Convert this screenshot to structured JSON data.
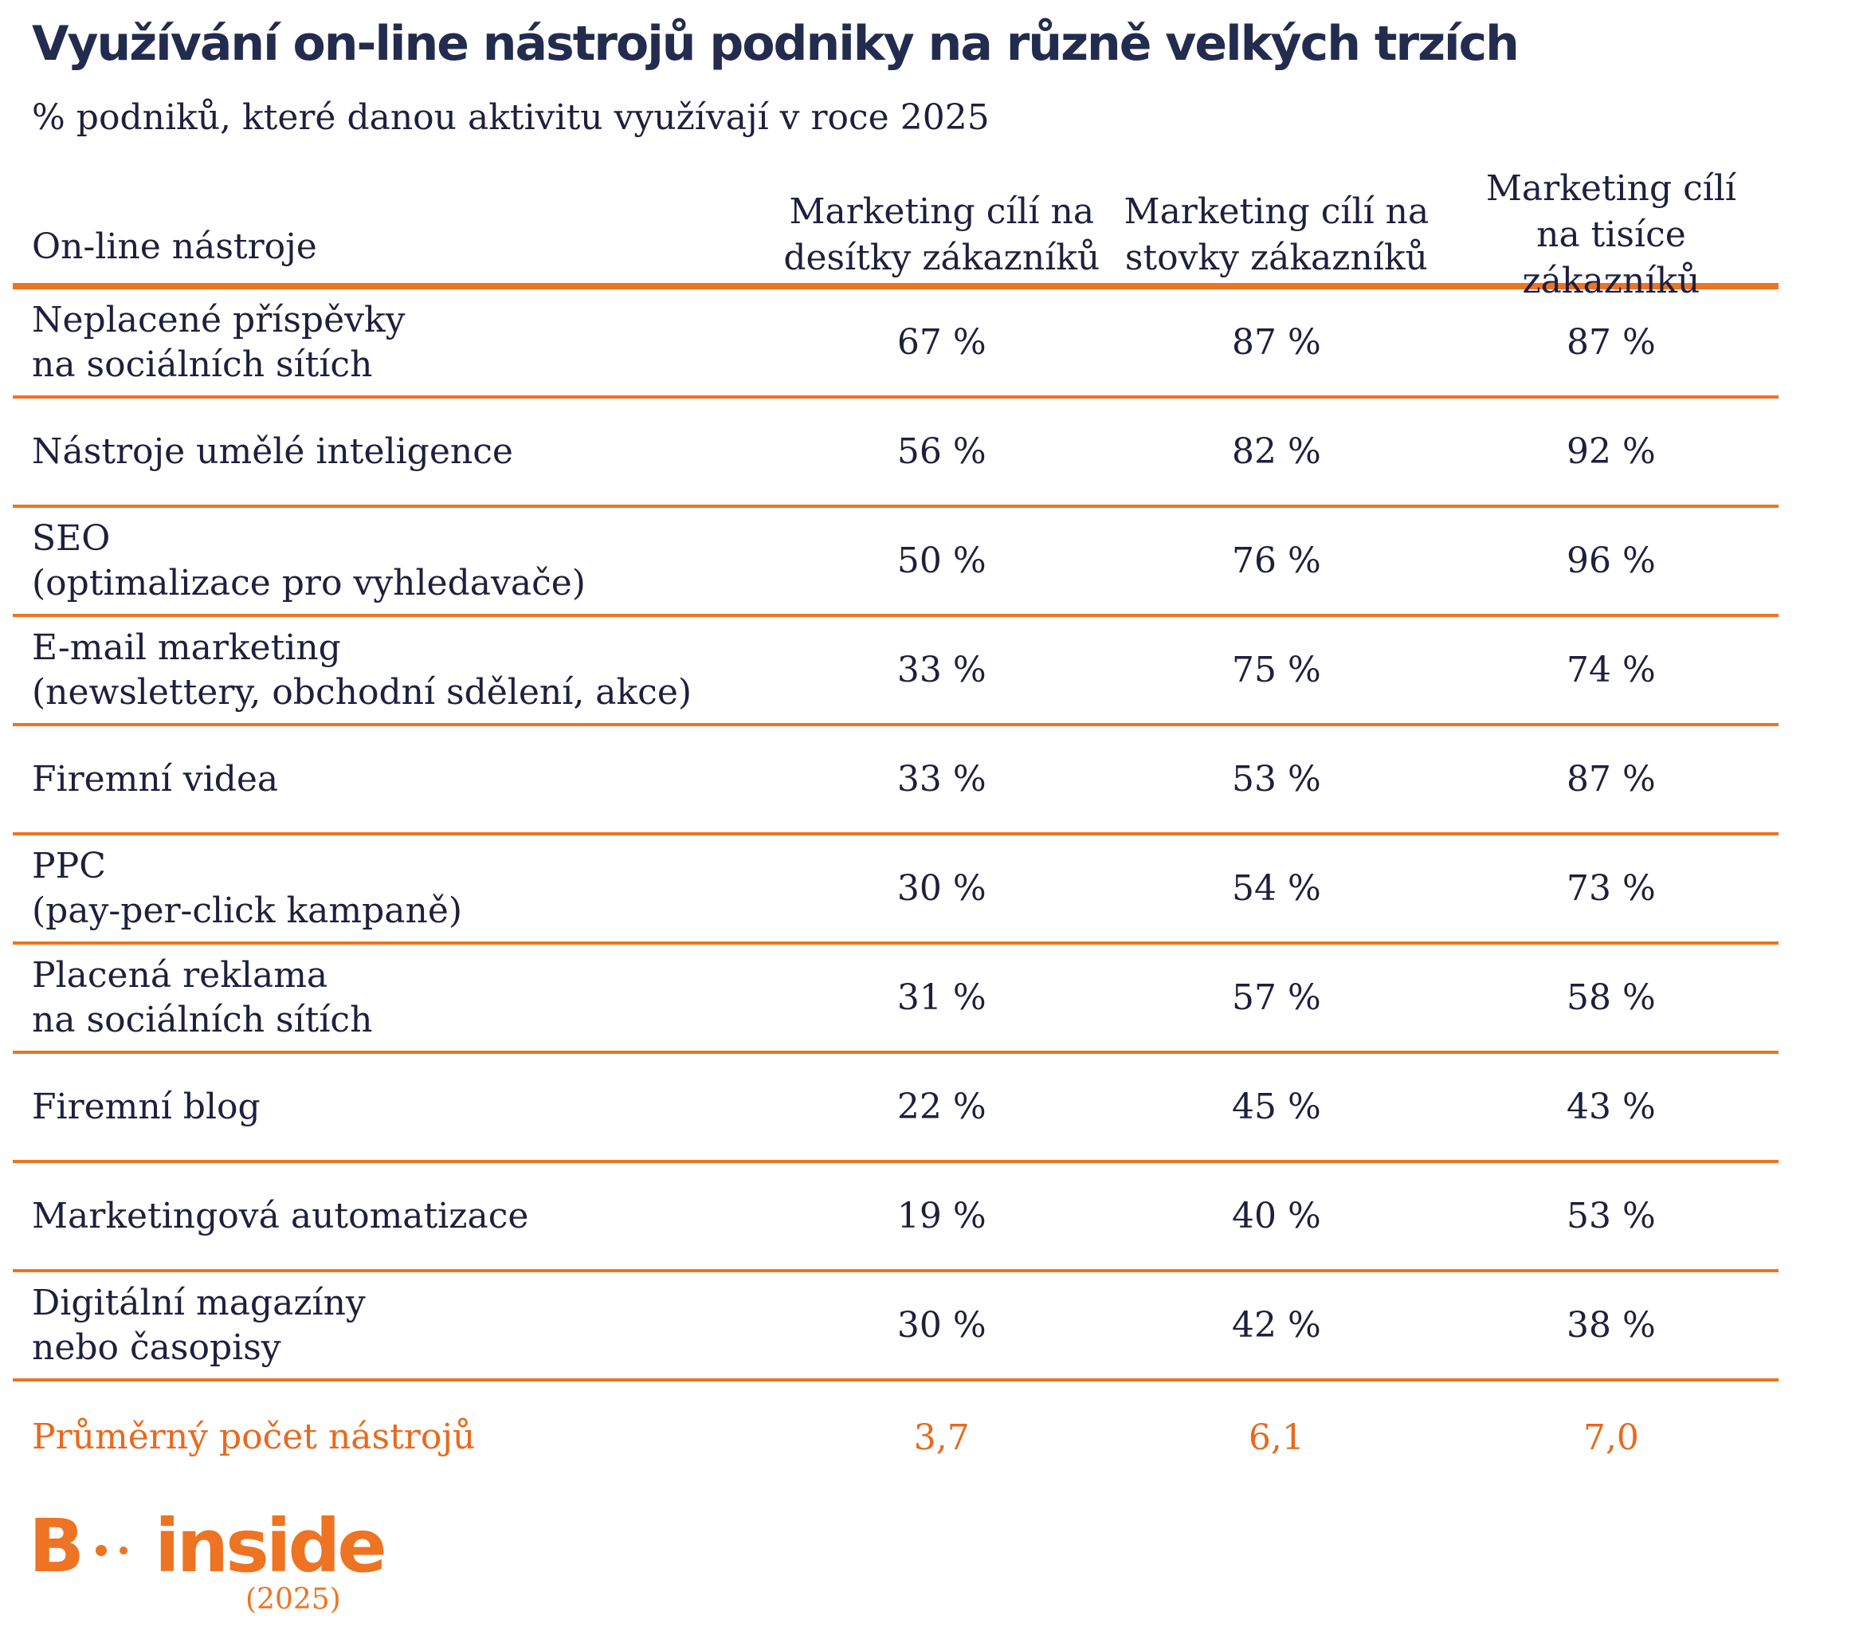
{
  "title": "Využívání on-line nástrojů podniky na různě velkých trzích",
  "subtitle": "% podniků, které danou aktivitu využívají v roce 2025",
  "chart_data": {
    "type": "table",
    "columns": [
      "On-line nástroje",
      "Marketing cílí na\ndesítky zákazníků",
      "Marketing cílí na\nstovky zákazníků",
      "Marketing cílí\nna tisíce zákazníků"
    ],
    "rows": [
      {
        "label1": "Neplacené příspěvky",
        "label2": "na sociálních sítích",
        "values": [
          "67 %",
          "87 %",
          "87 %"
        ]
      },
      {
        "label1": "Nástroje umělé inteligence",
        "label2": "",
        "values": [
          "56 %",
          "82 %",
          "92 %"
        ]
      },
      {
        "label1": "SEO",
        "label2": "(optimalizace pro vyhledavače)",
        "values": [
          "50 %",
          "76 %",
          "96 %"
        ]
      },
      {
        "label1": "E-mail marketing",
        "label2": "(newslettery, obchodní sdělení, akce)",
        "values": [
          "33 %",
          "75 %",
          "74 %"
        ]
      },
      {
        "label1": "Firemní videa",
        "label2": "",
        "values": [
          "33 %",
          "53 %",
          "87 %"
        ]
      },
      {
        "label1": "PPC",
        "label2": "(pay-per-click kampaně)",
        "values": [
          "30 %",
          "54 %",
          "73 %"
        ]
      },
      {
        "label1": "Placená reklama",
        "label2": "na sociálních sítích",
        "values": [
          "31 %",
          "57 %",
          "58 %"
        ]
      },
      {
        "label1": "Firemní blog",
        "label2": "",
        "values": [
          "22 %",
          "45 %",
          "43 %"
        ]
      },
      {
        "label1": "Marketingová automatizace",
        "label2": "",
        "values": [
          "19 %",
          "40 %",
          "53 %"
        ]
      },
      {
        "label1": "Digitální magazíny",
        "label2": "nebo časopisy",
        "values": [
          "30 %",
          "42 %",
          "38 %"
        ]
      }
    ],
    "footer": {
      "label": "Průměrný počet nástrojů",
      "values": [
        "3,7",
        "6,1",
        "7,0"
      ]
    }
  },
  "logo": {
    "b": "B",
    "word": "inside",
    "year": "(2025)"
  },
  "colors": {
    "accent": "#ee7322",
    "text": "#1f1f3d",
    "title": "#232c4f"
  }
}
